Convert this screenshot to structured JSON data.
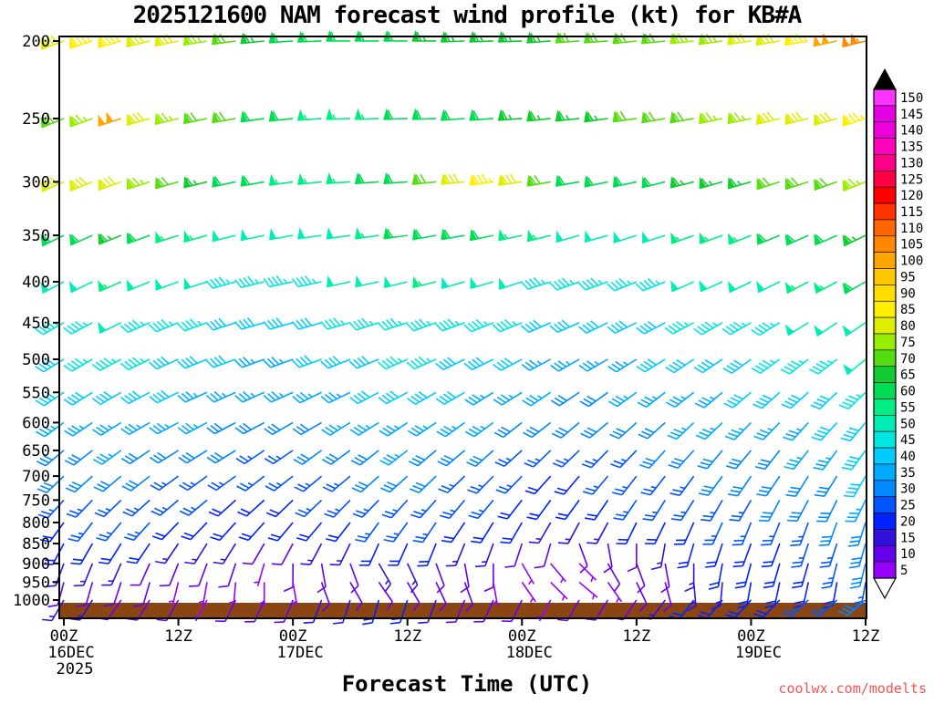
{
  "watermark": "coolwx.com/modelts",
  "chart_data": {
    "type": "wind-barb-time-height",
    "title": "2025121600 NAM forecast wind profile (kt) for KB#A",
    "xlabel": "Forecast Time (UTC)",
    "units": "kt",
    "x_hours": [
      0,
      3,
      6,
      9,
      12,
      15,
      18,
      21,
      24,
      27,
      30,
      33,
      36,
      39,
      42,
      45,
      48,
      51,
      54,
      57,
      60,
      63,
      66,
      69,
      72,
      75,
      78,
      81,
      84
    ],
    "x_ticks": [
      {
        "hour": 0,
        "label": "00Z",
        "date": "16DEC",
        "year": "2025"
      },
      {
        "hour": 12,
        "label": "12Z"
      },
      {
        "hour": 24,
        "label": "00Z",
        "date": "17DEC"
      },
      {
        "hour": 36,
        "label": "12Z"
      },
      {
        "hour": 48,
        "label": "00Z",
        "date": "18DEC"
      },
      {
        "hour": 60,
        "label": "12Z"
      },
      {
        "hour": 72,
        "label": "00Z",
        "date": "19DEC"
      },
      {
        "hour": 84,
        "label": "12Z"
      }
    ],
    "pressure_levels_hPa": [
      200,
      250,
      300,
      350,
      400,
      450,
      500,
      550,
      600,
      650,
      700,
      750,
      800,
      850,
      900,
      950,
      1000
    ],
    "y_axis": {
      "scale": "log",
      "top_hPa": 197.4,
      "bottom_hPa": 1054
    },
    "speed_kt": [
      [
        80,
        85,
        85,
        80,
        80,
        75,
        70,
        65,
        60,
        60,
        58,
        60,
        62,
        65,
        65,
        64,
        64,
        66,
        68,
        70,
        70,
        72,
        74,
        75,
        78,
        80,
        85,
        100,
        105
      ],
      [
        70,
        75,
        100,
        80,
        75,
        72,
        68,
        62,
        58,
        56,
        55,
        56,
        58,
        60,
        62,
        62,
        63,
        64,
        65,
        66,
        68,
        70,
        72,
        74,
        75,
        78,
        80,
        82,
        85
      ],
      [
        80,
        82,
        80,
        75,
        70,
        66,
        62,
        58,
        56,
        55,
        56,
        58,
        62,
        70,
        80,
        85,
        78,
        68,
        62,
        60,
        60,
        62,
        63,
        65,
        66,
        68,
        70,
        72,
        75
      ],
      [
        60,
        62,
        63,
        60,
        56,
        54,
        52,
        50,
        49,
        50,
        52,
        55,
        58,
        60,
        62,
        60,
        57,
        54,
        52,
        50,
        50,
        52,
        54,
        55,
        56,
        58,
        60,
        62,
        66
      ],
      [
        50,
        52,
        54,
        52,
        50,
        48,
        46,
        45,
        44,
        46,
        48,
        50,
        52,
        53,
        52,
        50,
        48,
        46,
        45,
        44,
        45,
        46,
        48,
        49,
        50,
        52,
        53,
        55,
        58
      ],
      [
        46,
        47,
        48,
        46,
        45,
        43,
        42,
        40,
        40,
        42,
        44,
        46,
        47,
        47,
        46,
        45,
        43,
        41,
        40,
        39,
        40,
        42,
        43,
        45,
        45,
        46,
        48,
        50,
        52
      ],
      [
        42,
        44,
        45,
        44,
        42,
        40,
        38,
        36,
        36,
        38,
        40,
        42,
        44,
        44,
        42,
        40,
        38,
        36,
        35,
        35,
        36,
        38,
        40,
        41,
        42,
        43,
        44,
        45,
        48
      ],
      [
        38,
        40,
        41,
        40,
        38,
        36,
        35,
        33,
        33,
        35,
        36,
        38,
        40,
        39,
        38,
        36,
        35,
        33,
        32,
        32,
        33,
        35,
        36,
        37,
        38,
        39,
        40,
        42,
        45
      ],
      [
        35,
        36,
        37,
        36,
        34,
        33,
        32,
        30,
        30,
        31,
        33,
        35,
        36,
        35,
        34,
        33,
        31,
        30,
        28,
        28,
        30,
        31,
        33,
        34,
        35,
        35,
        36,
        38,
        42
      ],
      [
        30,
        32,
        33,
        32,
        30,
        29,
        28,
        26,
        26,
        28,
        30,
        31,
        33,
        32,
        30,
        28,
        26,
        25,
        24,
        24,
        26,
        28,
        29,
        30,
        31,
        32,
        33,
        35,
        40
      ],
      [
        28,
        29,
        30,
        28,
        27,
        25,
        25,
        24,
        24,
        25,
        27,
        29,
        30,
        28,
        27,
        25,
        24,
        22,
        22,
        23,
        25,
        26,
        27,
        28,
        29,
        30,
        31,
        32,
        38
      ],
      [
        25,
        26,
        27,
        26,
        25,
        23,
        22,
        21,
        22,
        23,
        25,
        26,
        27,
        26,
        25,
        23,
        22,
        20,
        20,
        21,
        23,
        24,
        25,
        26,
        27,
        28,
        28,
        30,
        35
      ],
      [
        22,
        24,
        25,
        23,
        22,
        20,
        19,
        18,
        18,
        20,
        22,
        23,
        25,
        23,
        22,
        20,
        18,
        16,
        15,
        16,
        18,
        20,
        22,
        23,
        24,
        25,
        26,
        28,
        32
      ],
      [
        18,
        20,
        20,
        18,
        16,
        15,
        14,
        12,
        12,
        14,
        16,
        18,
        20,
        18,
        16,
        14,
        12,
        10,
        8,
        10,
        12,
        15,
        18,
        20,
        21,
        22,
        24,
        25,
        30
      ],
      [
        14,
        15,
        15,
        12,
        10,
        9,
        8,
        6,
        8,
        10,
        12,
        14,
        15,
        12,
        10,
        8,
        6,
        5,
        5,
        8,
        10,
        12,
        15,
        18,
        20,
        20,
        22,
        24,
        28
      ],
      [
        10,
        12,
        10,
        8,
        6,
        5,
        5,
        5,
        6,
        8,
        10,
        12,
        12,
        10,
        8,
        6,
        5,
        5,
        5,
        6,
        8,
        10,
        14,
        16,
        18,
        18,
        20,
        22,
        26
      ],
      [
        15,
        14,
        12,
        10,
        8,
        6,
        8,
        10,
        12,
        14,
        16,
        18,
        18,
        15,
        12,
        10,
        8,
        6,
        8,
        10,
        12,
        15,
        18,
        20,
        22,
        22,
        24,
        25,
        28
      ]
    ],
    "dir_deg_from": [
      [
        250,
        252,
        254,
        256,
        258,
        260,
        262,
        264,
        266,
        268,
        270,
        270,
        270,
        270,
        268,
        268,
        268,
        266,
        266,
        266,
        264,
        264,
        264,
        262,
        262,
        260,
        260,
        258,
        256
      ],
      [
        248,
        250,
        252,
        254,
        256,
        258,
        260,
        262,
        264,
        266,
        268,
        268,
        268,
        268,
        266,
        266,
        266,
        264,
        264,
        262,
        262,
        260,
        260,
        258,
        258,
        256,
        256,
        254,
        252
      ],
      [
        246,
        248,
        250,
        252,
        254,
        256,
        258,
        260,
        262,
        264,
        266,
        266,
        266,
        264,
        264,
        262,
        262,
        260,
        260,
        258,
        258,
        256,
        256,
        254,
        254,
        252,
        252,
        250,
        248
      ],
      [
        244,
        246,
        248,
        250,
        252,
        254,
        256,
        258,
        260,
        262,
        262,
        262,
        262,
        260,
        260,
        258,
        258,
        256,
        254,
        254,
        252,
        252,
        250,
        250,
        248,
        248,
        246,
        246,
        244
      ],
      [
        242,
        244,
        246,
        248,
        250,
        252,
        254,
        256,
        258,
        258,
        258,
        258,
        256,
        256,
        254,
        254,
        252,
        252,
        250,
        250,
        248,
        248,
        246,
        246,
        244,
        244,
        242,
        242,
        240
      ],
      [
        240,
        242,
        244,
        246,
        248,
        250,
        252,
        254,
        254,
        254,
        254,
        252,
        252,
        250,
        250,
        248,
        248,
        246,
        246,
        244,
        244,
        242,
        242,
        240,
        240,
        238,
        238,
        236,
        236
      ],
      [
        238,
        240,
        242,
        244,
        246,
        248,
        250,
        250,
        250,
        250,
        248,
        248,
        246,
        246,
        244,
        244,
        242,
        242,
        240,
        240,
        238,
        238,
        236,
        236,
        234,
        234,
        232,
        232,
        230
      ],
      [
        236,
        238,
        240,
        242,
        244,
        246,
        246,
        246,
        246,
        244,
        244,
        242,
        242,
        240,
        240,
        238,
        238,
        236,
        236,
        234,
        234,
        232,
        232,
        230,
        230,
        228,
        228,
        226,
        226
      ],
      [
        234,
        236,
        238,
        240,
        242,
        242,
        242,
        242,
        240,
        240,
        238,
        238,
        236,
        236,
        234,
        234,
        232,
        232,
        230,
        230,
        228,
        228,
        226,
        226,
        224,
        224,
        222,
        222,
        220
      ],
      [
        230,
        232,
        234,
        236,
        238,
        238,
        238,
        236,
        236,
        234,
        234,
        232,
        232,
        230,
        230,
        228,
        228,
        226,
        226,
        224,
        224,
        222,
        222,
        220,
        220,
        218,
        218,
        216,
        216
      ],
      [
        226,
        228,
        230,
        232,
        234,
        234,
        234,
        232,
        232,
        230,
        230,
        228,
        228,
        226,
        226,
        224,
        224,
        222,
        220,
        220,
        218,
        218,
        216,
        216,
        214,
        214,
        212,
        212,
        210
      ],
      [
        222,
        224,
        226,
        228,
        230,
        230,
        228,
        228,
        226,
        226,
        224,
        224,
        222,
        222,
        220,
        220,
        218,
        216,
        216,
        214,
        214,
        212,
        212,
        210,
        210,
        208,
        208,
        206,
        206
      ],
      [
        216,
        218,
        220,
        222,
        224,
        224,
        222,
        222,
        220,
        220,
        218,
        216,
        216,
        214,
        214,
        212,
        210,
        210,
        208,
        208,
        206,
        206,
        204,
        204,
        202,
        202,
        200,
        200,
        198
      ],
      [
        208,
        210,
        212,
        214,
        214,
        212,
        212,
        210,
        208,
        208,
        206,
        204,
        204,
        202,
        202,
        200,
        198,
        196,
        160,
        170,
        180,
        190,
        196,
        198,
        200,
        200,
        198,
        198,
        196
      ],
      [
        200,
        202,
        204,
        204,
        202,
        200,
        198,
        196,
        180,
        170,
        160,
        150,
        155,
        160,
        170,
        180,
        150,
        140,
        135,
        150,
        160,
        170,
        180,
        190,
        195,
        196,
        196,
        194,
        194
      ],
      [
        195,
        196,
        198,
        196,
        194,
        190,
        185,
        180,
        170,
        160,
        150,
        145,
        150,
        155,
        160,
        170,
        145,
        135,
        130,
        145,
        155,
        165,
        175,
        185,
        190,
        192,
        192,
        190,
        190
      ],
      [
        210,
        212,
        214,
        212,
        210,
        208,
        206,
        204,
        202,
        200,
        198,
        196,
        198,
        200,
        202,
        204,
        206,
        208,
        210,
        212,
        214,
        216,
        218,
        220,
        222,
        224,
        226,
        228,
        230
      ]
    ],
    "colorbar": {
      "units": "kt",
      "values": [
        5,
        10,
        15,
        20,
        25,
        30,
        35,
        40,
        45,
        50,
        55,
        60,
        65,
        70,
        75,
        80,
        85,
        90,
        95,
        100,
        105,
        110,
        115,
        120,
        125,
        130,
        135,
        140,
        145,
        150
      ],
      "colors": [
        "#9900ff",
        "#6600ee",
        "#3311dd",
        "#0022ff",
        "#0055ff",
        "#0088ff",
        "#00aaff",
        "#00ccff",
        "#00e6e0",
        "#00eeb4",
        "#00ee84",
        "#00dd55",
        "#11cc33",
        "#55dd11",
        "#99ee00",
        "#ddee00",
        "#ffee00",
        "#ffdd00",
        "#ffc800",
        "#ffa500",
        "#ff8800",
        "#ff6600",
        "#ff3300",
        "#ff0000",
        "#ff0044",
        "#ff0088",
        "#ff00bb",
        "#ee00dd",
        "#e600e6",
        "#ff33ff"
      ],
      "over_arrow_color": "#000000",
      "under_arrow_color": "#ffffff"
    },
    "terrain": {
      "color": "#8b4513",
      "top_hPa": 1008
    },
    "legend_position": "right",
    "grid": false
  }
}
